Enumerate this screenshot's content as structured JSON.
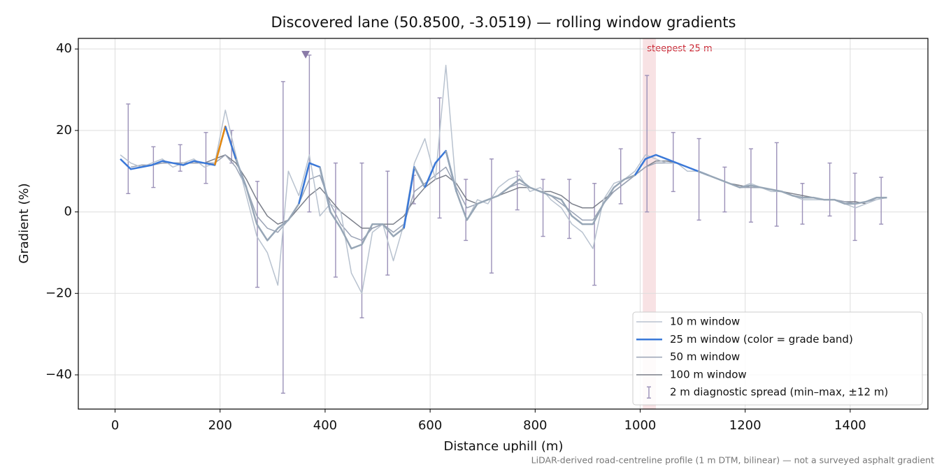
{
  "chart_data": {
    "type": "line",
    "title": "Discovered lane (50.8500, -3.0519) — rolling window gradients",
    "xlabel": "Distance uphill (m)",
    "ylabel": "Gradient (%)",
    "footnote": "LiDAR-derived road-centreline profile (1 m DTM, bilinear) — not a surveyed asphalt gradient",
    "xlim": [
      -70,
      1548
    ],
    "ylim": [
      -48.4,
      42.6
    ],
    "xticks": [
      0,
      200,
      400,
      600,
      800,
      1000,
      1200,
      1400
    ],
    "yticks": [
      40,
      20,
      0,
      {
        "value": -20,
        "label": "−20"
      },
      {
        "value": -40,
        "label": "−40"
      }
    ],
    "grid": true,
    "legend": "lower right",
    "x": [
      10,
      30,
      50,
      70,
      90,
      110,
      130,
      150,
      170,
      190,
      210,
      230,
      250,
      270,
      290,
      310,
      330,
      350,
      370,
      390,
      410,
      430,
      450,
      470,
      490,
      510,
      530,
      550,
      570,
      590,
      610,
      630,
      650,
      670,
      690,
      710,
      730,
      750,
      770,
      790,
      810,
      830,
      850,
      870,
      890,
      910,
      930,
      950,
      970,
      990,
      1010,
      1030,
      1050,
      1070,
      1090,
      1110,
      1130,
      1150,
      1170,
      1190,
      1210,
      1230,
      1250,
      1270,
      1290,
      1310,
      1330,
      1350,
      1370,
      1390,
      1410,
      1430,
      1450,
      1470
    ],
    "series": [
      {
        "name": "10 m window",
        "color": "#b8c2cf",
        "width": 1.5,
        "values": [
          14,
          12,
          11,
          12,
          13,
          11,
          12,
          13,
          11,
          12,
          25,
          14,
          4,
          -6,
          -10,
          -18,
          10,
          4,
          14,
          -1,
          2,
          0,
          -15,
          -20,
          -5,
          -3,
          -12,
          -3,
          12,
          18,
          8,
          36,
          5,
          -2,
          3,
          2,
          6,
          8,
          9,
          5,
          6,
          3,
          1,
          -3,
          -5,
          -9,
          3,
          7,
          8,
          10,
          14,
          13,
          12,
          12,
          10,
          10,
          9,
          8,
          7,
          6,
          7,
          6,
          5,
          5,
          4,
          3,
          3,
          3,
          3,
          2,
          1,
          2,
          3,
          3.5
        ]
      },
      {
        "name": "25 m window (color = grade band)",
        "color": "#3a78d8",
        "width": 2.5,
        "band_limits": [
          10,
          20
        ],
        "band_colors": [
          "#97a6b6",
          "#3a78d8",
          "#e8890c"
        ],
        "values": [
          13,
          10.5,
          11,
          11.5,
          12.5,
          12,
          11.5,
          12.5,
          12,
          11.5,
          21,
          13,
          6,
          -3,
          -7,
          -4,
          -2,
          2,
          12,
          11,
          0,
          -4,
          -9,
          -8,
          -3,
          -3,
          -6,
          -4,
          11,
          6,
          12,
          15,
          5,
          -2,
          2,
          3,
          4,
          6,
          8,
          6,
          5,
          4,
          3,
          -1,
          -3,
          -3,
          2,
          6,
          8,
          9,
          13,
          14,
          13,
          12,
          11,
          10,
          9,
          8,
          7,
          6,
          6.5,
          6,
          5.5,
          5,
          4,
          3.5,
          3.5,
          3,
          3,
          2,
          2,
          2.5,
          3.5,
          3.5
        ]
      },
      {
        "name": "50 m window",
        "color": "#9aa3b5",
        "width": 1.5,
        "values": [
          null,
          11,
          11.5,
          11.5,
          12,
          12,
          12,
          12,
          12,
          12,
          14,
          11,
          6,
          -1,
          -4,
          -5,
          -2,
          2,
          8,
          9,
          2,
          -3,
          -6,
          -7,
          -4,
          -3,
          -5,
          -3,
          5,
          7,
          9,
          11,
          6,
          1,
          2,
          3,
          4,
          6,
          7,
          6,
          5,
          4,
          2,
          0,
          -2,
          -2,
          2,
          5,
          7,
          9,
          11,
          12,
          12,
          12,
          11,
          10,
          9,
          8,
          7,
          6,
          6,
          6,
          5.5,
          5,
          4,
          3.5,
          3.5,
          3,
          3,
          2.5,
          2,
          2.5,
          3,
          null
        ]
      },
      {
        "name": "100 m window",
        "color": "#7b7f8a",
        "width": 1.5,
        "values": [
          null,
          null,
          11.5,
          11.5,
          12,
          12,
          12,
          12,
          12,
          13,
          14,
          12,
          8,
          3,
          -1,
          -3,
          -2,
          1,
          4,
          6,
          3,
          0,
          -2,
          -4,
          -4,
          -3,
          -3,
          -1,
          3,
          6,
          8,
          9,
          7,
          3,
          2,
          3,
          4,
          5,
          6,
          6,
          5,
          5,
          4,
          2,
          1,
          1,
          3,
          5,
          7,
          9,
          11,
          12.5,
          12.5,
          12,
          11,
          10,
          9,
          8,
          7,
          6.5,
          6,
          6,
          5.5,
          5,
          4.5,
          4,
          3.5,
          3,
          3,
          2.5,
          2.5,
          2,
          null,
          null
        ]
      }
    ],
    "errorbars": {
      "name": "2 m diagnostic spread (min–max, ±12 m)",
      "color": "#9b91b8",
      "x": [
        25,
        73,
        124,
        173,
        222,
        271,
        320,
        370,
        420,
        470,
        519,
        569,
        618,
        668,
        717,
        766,
        815,
        865,
        913,
        963,
        1013,
        1063,
        1112,
        1161,
        1211,
        1260,
        1309,
        1361,
        1409,
        1459
      ],
      "min": [
        4.5,
        6,
        10,
        7,
        12,
        -18.5,
        -44.5,
        0,
        -16,
        -26,
        -15.5,
        2,
        -1.5,
        -7,
        -15,
        0.5,
        -6,
        -6.5,
        -18,
        2,
        0,
        5,
        -2,
        0,
        -2.5,
        -3.5,
        -3,
        -1,
        -7,
        -3
      ],
      "max": [
        26.5,
        16,
        16.5,
        19.5,
        20,
        7.5,
        32,
        38.5,
        12,
        12,
        10,
        9,
        28,
        8,
        13,
        10,
        8,
        8,
        7,
        15.5,
        33.5,
        19.5,
        18,
        11,
        15.5,
        17,
        7,
        12,
        9.5,
        8.5
      ]
    },
    "offscale_marker": {
      "x": 363,
      "y": 38.5,
      "color": "#8a7aa8"
    },
    "highlight": {
      "from": 1005,
      "to": 1030,
      "label": "steepest 25 m",
      "color": "#c8202d"
    }
  }
}
